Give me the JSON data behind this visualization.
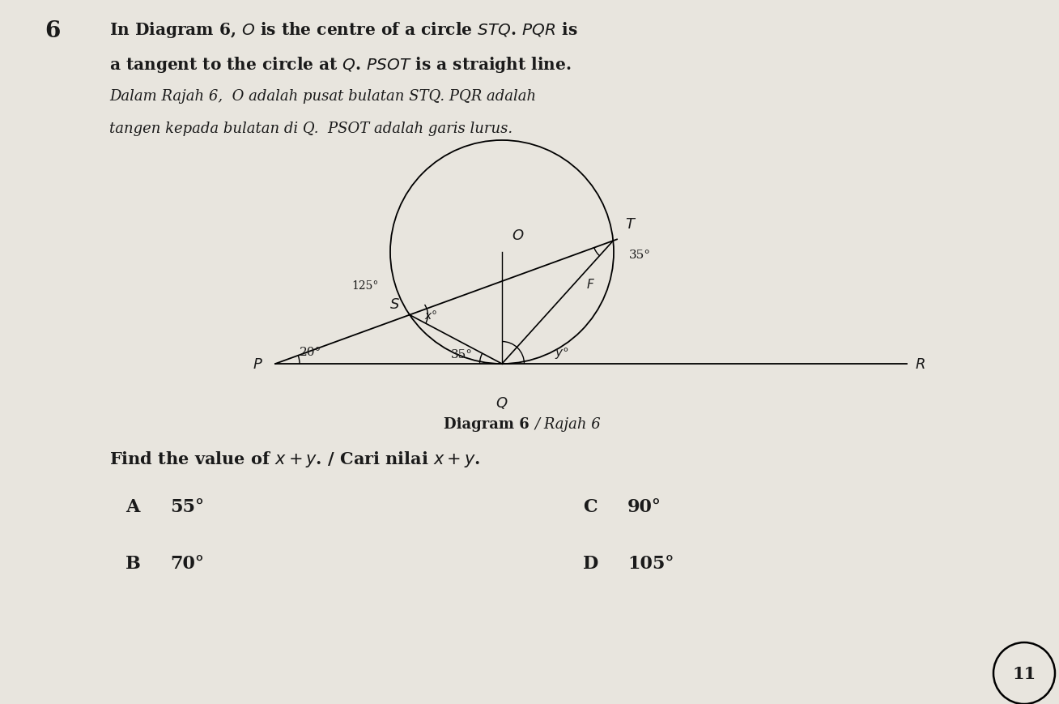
{
  "bg_color": "#e8e5de",
  "text_color": "#1a1a1a",
  "title_num": "6",
  "diagram_label_bold": "Diagram 6",
  "diagram_label_italic": " / Rajah 6",
  "question": "Find the value of ",
  "question2": ". / Cari nilai ",
  "page_num": "11",
  "opt_A_letter": "A",
  "opt_A_val": "55°",
  "opt_B_letter": "B",
  "opt_B_val": "70°",
  "opt_C_letter": "C",
  "opt_C_val": "90°",
  "opt_D_letter": "D",
  "opt_D_val": "105°"
}
